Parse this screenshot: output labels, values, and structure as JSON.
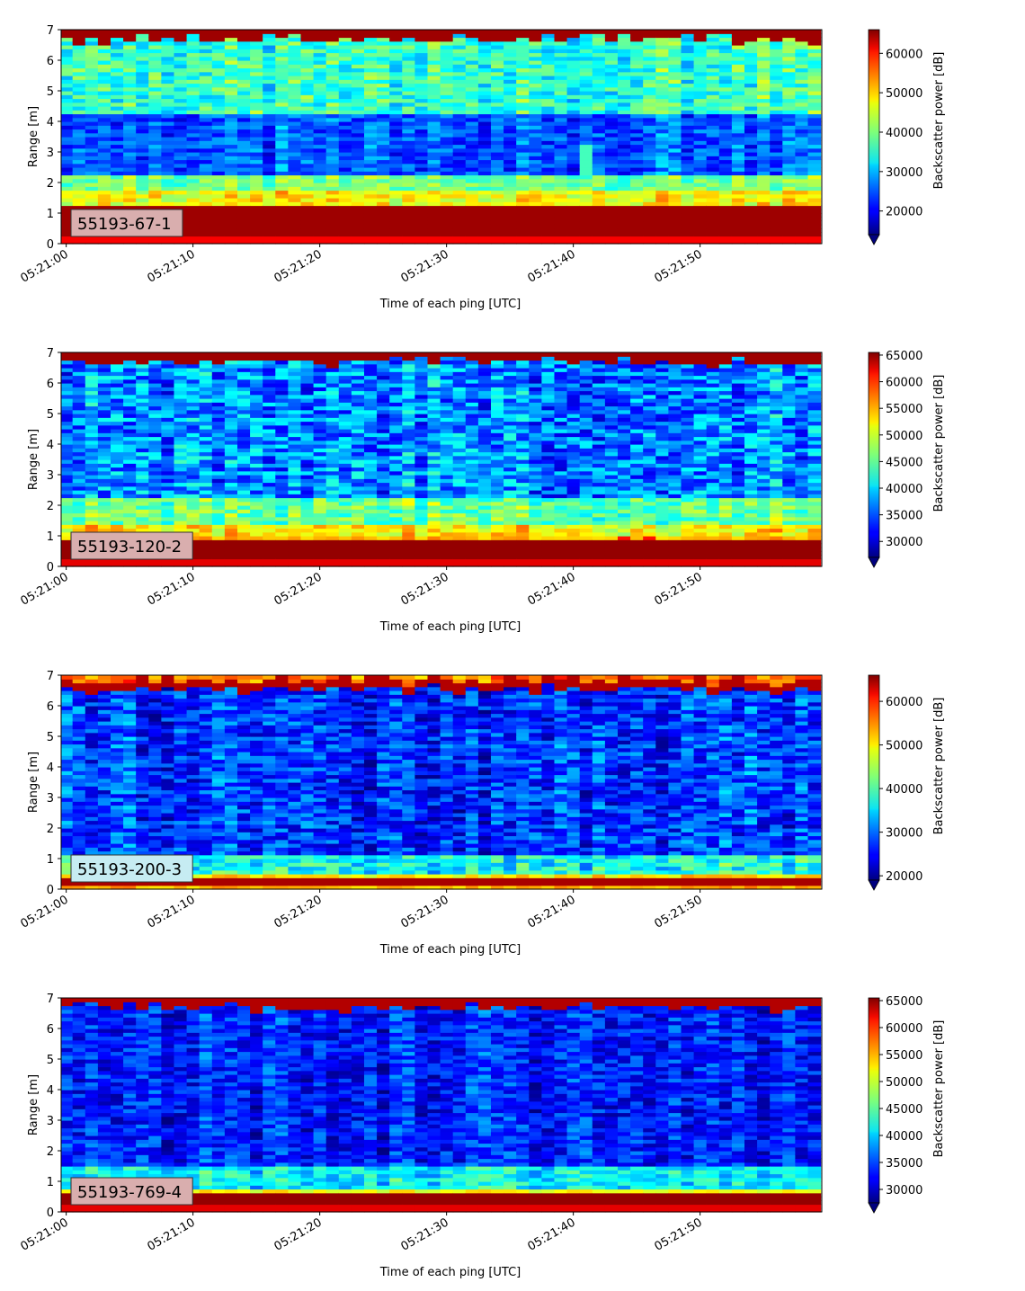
{
  "chart_data": [
    {
      "type": "heatmap",
      "label": "55193-67-1",
      "label_box_color": "#d9aeae",
      "xlabel": "Time of each ping [UTC]",
      "ylabel": "Range [m]",
      "ylim": [
        0,
        7
      ],
      "y_ticks": [
        "0",
        "1",
        "2",
        "3",
        "4",
        "5",
        "6",
        "7"
      ],
      "x_ticks": [
        "05:21:00",
        "05:21:10",
        "05:21:20",
        "05:21:30",
        "05:21:40",
        "05:21:50"
      ],
      "xlim_seconds": [
        -0.4,
        59.6
      ],
      "colorbar_label": "Backscatter power [dB]",
      "colorbar_range": [
        14000,
        66000
      ],
      "colorbar_ticks": [
        "20000",
        "30000",
        "40000",
        "50000",
        "60000"
      ],
      "colorbar_tick_values": [
        20000,
        30000,
        40000,
        50000,
        60000
      ],
      "colormap": "jet",
      "colorbar_extend": "min",
      "profile_description": {
        "surface_top_m": 6.6,
        "noise_band": [
          4.3,
          6.4
        ],
        "dark_band": [
          2.3,
          4.2
        ],
        "bright_band": [
          1.2,
          2.2
        ],
        "bottom_band": [
          0.2,
          1.2
        ],
        "anomaly_ping_second": 41
      }
    },
    {
      "type": "heatmap",
      "label": "55193-120-2",
      "label_box_color": "#d9aeae",
      "xlabel": "Time of each ping [UTC]",
      "ylabel": "Range [m]",
      "ylim": [
        0,
        7
      ],
      "y_ticks": [
        "0",
        "1",
        "2",
        "3",
        "4",
        "5",
        "6",
        "7"
      ],
      "x_ticks": [
        "05:21:00",
        "05:21:10",
        "05:21:20",
        "05:21:30",
        "05:21:40",
        "05:21:50"
      ],
      "xlim_seconds": [
        -0.4,
        59.6
      ],
      "colorbar_label": "Backscatter power [dB]",
      "colorbar_range": [
        27000,
        65500
      ],
      "colorbar_ticks": [
        "30000",
        "35000",
        "40000",
        "45000",
        "50000",
        "55000",
        "60000",
        "65000"
      ],
      "colorbar_tick_values": [
        30000,
        35000,
        40000,
        45000,
        50000,
        55000,
        60000,
        65000
      ],
      "colormap": "jet",
      "colorbar_extend": "min"
    },
    {
      "type": "heatmap",
      "label": "55193-200-3",
      "label_box_color": "#c6ecf2",
      "xlabel": "Time of each ping [UTC]",
      "ylabel": "Range [m]",
      "ylim": [
        0,
        7
      ],
      "y_ticks": [
        "0",
        "1",
        "2",
        "3",
        "4",
        "5",
        "6",
        "7"
      ],
      "x_ticks": [
        "05:21:00",
        "05:21:10",
        "05:21:20",
        "05:21:30",
        "05:21:40",
        "05:21:50"
      ],
      "xlim_seconds": [
        -0.4,
        59.6
      ],
      "colorbar_label": "Backscatter power [dB]",
      "colorbar_range": [
        19000,
        66000
      ],
      "colorbar_ticks": [
        "20000",
        "30000",
        "40000",
        "50000",
        "60000"
      ],
      "colorbar_tick_values": [
        20000,
        30000,
        40000,
        50000,
        60000
      ],
      "colormap": "jet",
      "colorbar_extend": "min"
    },
    {
      "type": "heatmap",
      "label": "55193-769-4",
      "label_box_color": "#d9aeae",
      "xlabel": "Time of each ping [UTC]",
      "ylabel": "Range [m]",
      "ylim": [
        0,
        7
      ],
      "y_ticks": [
        "0",
        "1",
        "2",
        "3",
        "4",
        "5",
        "6",
        "7"
      ],
      "x_ticks": [
        "05:21:00",
        "05:21:10",
        "05:21:20",
        "05:21:30",
        "05:21:40",
        "05:21:50"
      ],
      "xlim_seconds": [
        -0.4,
        59.6
      ],
      "colorbar_label": "Backscatter power [dB]",
      "colorbar_range": [
        27500,
        65500
      ],
      "colorbar_ticks": [
        "30000",
        "35000",
        "40000",
        "45000",
        "50000",
        "55000",
        "60000",
        "65000"
      ],
      "colorbar_tick_values": [
        30000,
        35000,
        40000,
        45000,
        50000,
        55000,
        60000,
        65000
      ],
      "colormap": "jet",
      "colorbar_extend": "min"
    }
  ]
}
